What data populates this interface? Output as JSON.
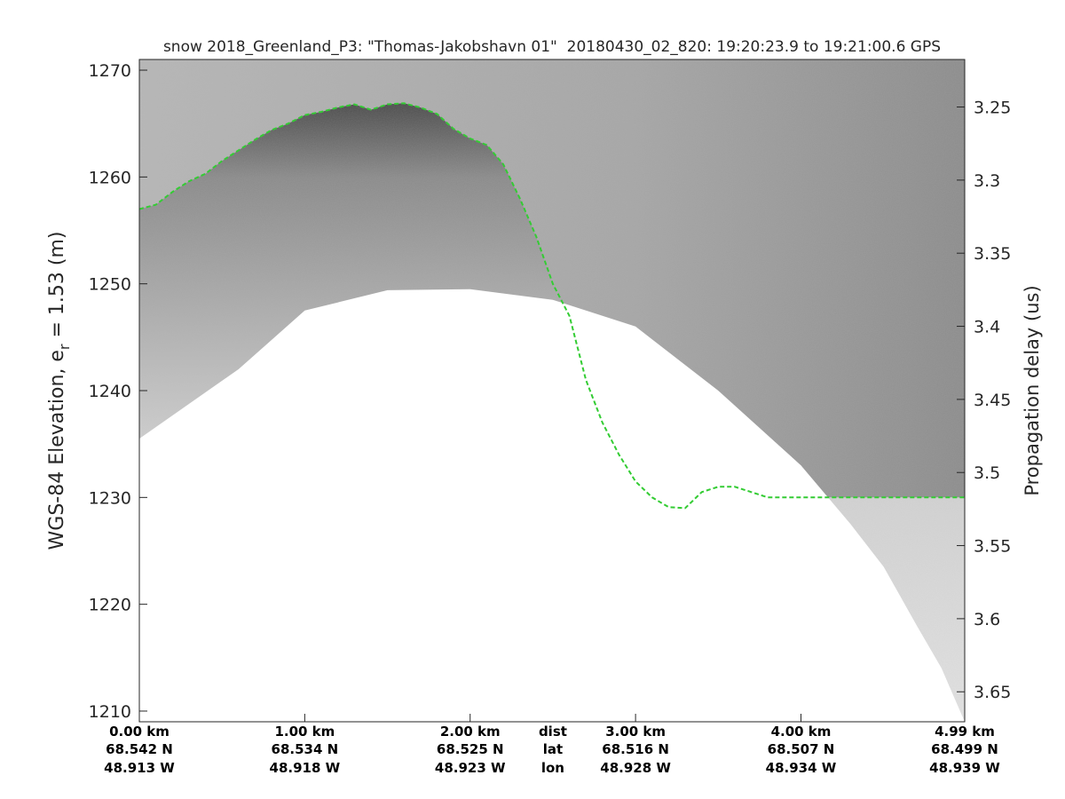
{
  "chart_data": {
    "type": "heatmap",
    "title": "snow 2018_Greenland_P3: \"Thomas-Jakobshavn 01\"  20180430_02_820: 19:20:23.9 to 19:21:00.6 GPS",
    "ylabel_left": "WGS-84 Elevation, e",
    "ylabel_left_sub": "r",
    "ylabel_left_rest": " = 1.53 (m)",
    "ylabel_right": "Propagation delay (us)",
    "colormap": "gray",
    "ylim": [
      1209,
      1271
    ],
    "y_ticks": [
      1210,
      1220,
      1230,
      1240,
      1250,
      1260,
      1270
    ],
    "y_tick_labels": [
      "1210",
      "1220",
      "1230",
      "1240",
      "1250",
      "1260",
      "1270"
    ],
    "right_axis_lim": [
      3.2175,
      3.6705
    ],
    "right_ticks": [
      3.25,
      3.3,
      3.35,
      3.4,
      3.45,
      3.5,
      3.55,
      3.6,
      3.65
    ],
    "right_tick_labels": [
      "3.25",
      "3.3",
      "3.35",
      "3.4",
      "3.45",
      "3.5",
      "3.55",
      "3.6",
      "3.65"
    ],
    "xlim_km": [
      0,
      4.99
    ],
    "x_ticks_km": [
      0,
      1,
      2,
      3,
      4,
      4.99
    ],
    "x_tick_labels": [
      {
        "dist": "0.00 km",
        "lat": "68.542 N",
        "lon": "48.913 W"
      },
      {
        "dist": "1.00 km",
        "lat": "68.534 N",
        "lon": "48.918 W"
      },
      {
        "dist": "2.00 km",
        "lat": "68.525 N",
        "lon": "48.923 W"
      },
      {
        "dist": "3.00 km",
        "lat": "68.516 N",
        "lon": "48.928 W"
      },
      {
        "dist": "4.00 km",
        "lat": "68.507 N",
        "lon": "48.934 W"
      },
      {
        "dist": "4.99 km",
        "lat": "68.499 N",
        "lon": "48.939 W"
      }
    ],
    "x_row_names": {
      "dist": "dist",
      "lat": "lat",
      "lon": "lon"
    },
    "x_row_names_at_km": 2.5,
    "surface_color": "#33cc33",
    "surface_elevation": {
      "x_km": [
        0,
        0.1,
        0.2,
        0.3,
        0.4,
        0.5,
        0.6,
        0.7,
        0.8,
        0.9,
        1.0,
        1.1,
        1.2,
        1.3,
        1.4,
        1.5,
        1.6,
        1.7,
        1.8,
        1.9,
        2.0,
        2.1,
        2.2,
        2.3,
        2.4,
        2.5,
        2.6,
        2.7,
        2.8,
        2.9,
        3.0,
        3.1,
        3.2,
        3.3,
        3.4,
        3.5,
        3.6,
        3.7,
        3.8,
        3.9,
        4.0,
        4.1,
        4.2,
        4.3,
        4.4,
        4.5,
        4.6,
        4.7,
        4.8,
        4.9,
        4.99
      ],
      "elevation_m": [
        1257.0,
        1257.4,
        1258.6,
        1259.6,
        1260.3,
        1261.5,
        1262.5,
        1263.5,
        1264.4,
        1265.0,
        1265.8,
        1266.1,
        1266.5,
        1266.8,
        1266.3,
        1266.8,
        1266.9,
        1266.5,
        1265.9,
        1264.5,
        1263.6,
        1263.0,
        1261.2,
        1258.0,
        1254.4,
        1250.0,
        1247.0,
        1241.0,
        1237.0,
        1234.0,
        1231.5,
        1230.0,
        1229.1,
        1229.0,
        1230.5,
        1231.0,
        1231.0,
        1230.5,
        1230.0,
        1230.0,
        1230.0,
        1230.0,
        1230.0,
        1230.0,
        1230.0,
        1230.0,
        1230.0,
        1230.0,
        1230.0,
        1230.0,
        1230.0
      ]
    },
    "data_extent_bottom": {
      "x_km": [
        0,
        0.6,
        1.0,
        1.5,
        2.0,
        2.5,
        3.0,
        3.5,
        4.0,
        4.3,
        4.5,
        4.7,
        4.85,
        4.99
      ],
      "elevation_m": [
        1235.5,
        1242.0,
        1247.5,
        1249.4,
        1249.5,
        1248.5,
        1246.0,
        1240.0,
        1233.0,
        1227.5,
        1223.5,
        1218.0,
        1214.0,
        1209.0
      ]
    }
  }
}
